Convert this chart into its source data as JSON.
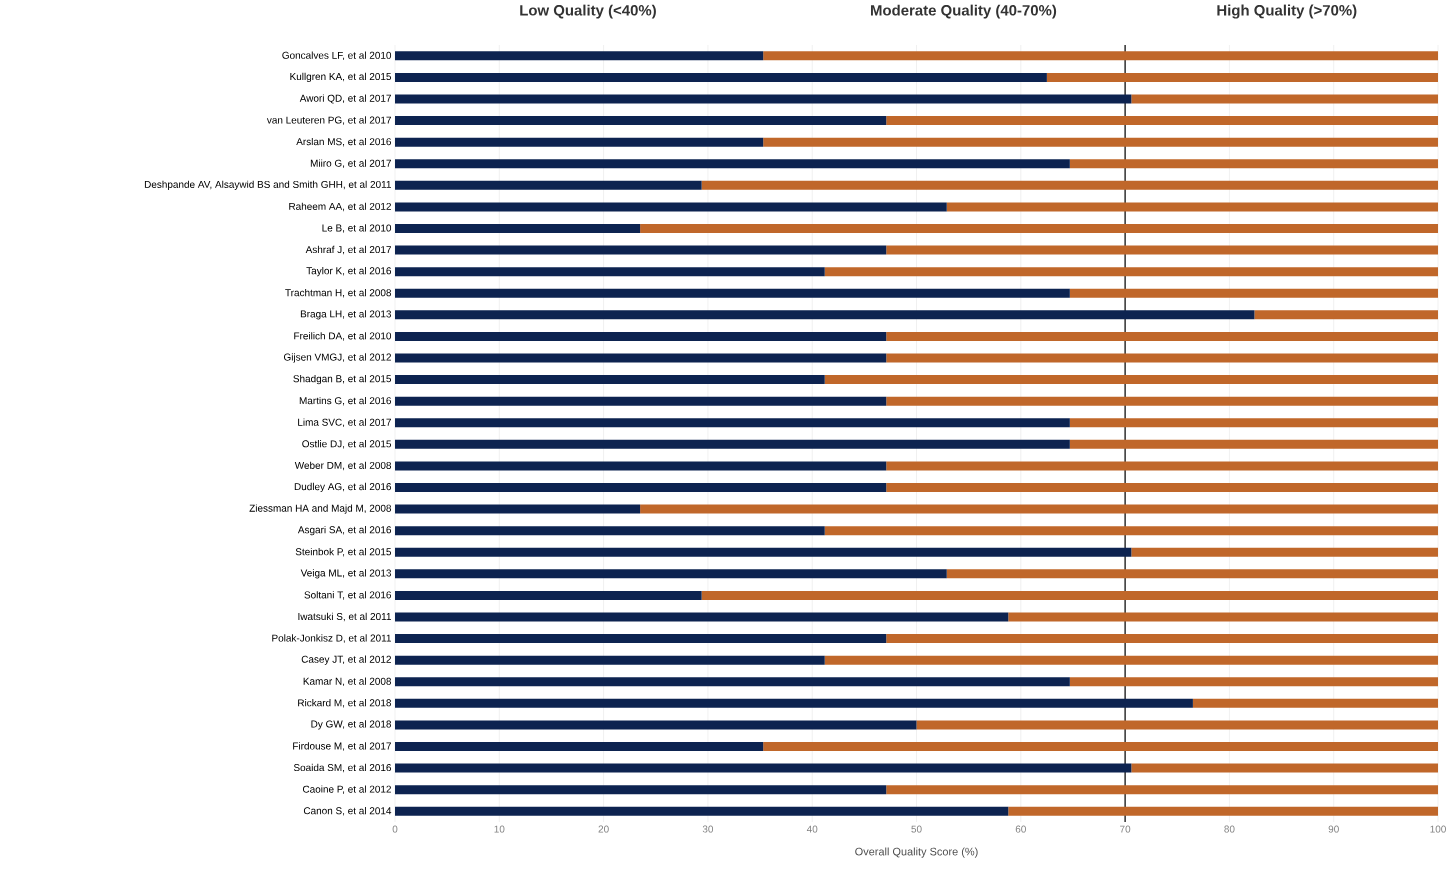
{
  "chart_data": {
    "type": "bar",
    "orientation": "horizontal",
    "stacked": true,
    "xlabel": "Overall Quality Score (%)",
    "annotations": [
      "Low Quality (<40%)",
      "Moderate Quality (40-70%)",
      "High Quality (>70%)"
    ],
    "categories": [
      "Goncalves LF, et al 2010",
      "Kullgren KA, et al 2015",
      "Awori QD, et al 2017",
      "van Leuteren PG, et al 2017",
      "Arslan MS, et al 2016",
      "Miiro G, et al 2017",
      "Deshpande AV, Alsaywid BS and Smith GHH, et al 2011",
      "Raheem AA, et al 2012",
      "Le B, et al 2010",
      "Ashraf J, et al 2017",
      "Taylor K, et al 2016",
      "Trachtman H, et al 2008",
      "Braga LH, et al 2013",
      "Freilich DA, et al 2010",
      "Gijsen VMGJ, et al 2012",
      "Shadgan B, et al 2015",
      "Martins G, et al 2016",
      "Lima SVC, et al 2017",
      "Ostlie DJ, et al 2015",
      "Weber DM, et al 2008",
      "Dudley AG, et al 2016",
      "Ziessman HA and Majd M, 2008",
      "Asgari SA, et al 2016",
      "Steinbok P, et al 2015",
      "Veiga ML, et al 2013",
      "Soltani T, et al 2016",
      "Iwatsuki S, et al 2011",
      "Polak-Jonkisz D, et al 2011",
      "Casey JT, et al 2012",
      "Kamar N, et al 2008",
      "Rickard M, et al 2018",
      "Dy GW, et al 2018",
      "Firdouse M, et al 2017",
      "Soaida SM, et al 2016",
      "Caoine P, et al 2012",
      "Canon S, et al 2014"
    ],
    "series": [
      {
        "color": "#0d2350",
        "values": [
          35.3,
          62.5,
          70.6,
          47.1,
          35.3,
          64.7,
          29.4,
          52.9,
          23.5,
          47.1,
          41.2,
          64.7,
          82.4,
          47.1,
          47.1,
          41.2,
          47.1,
          64.7,
          64.7,
          47.1,
          47.1,
          23.5,
          41.2,
          70.6,
          52.9,
          29.4,
          58.8,
          47.1,
          41.2,
          64.7,
          76.5,
          50.0,
          35.3,
          70.6,
          47.1,
          58.8
        ]
      },
      {
        "color": "#c0672a",
        "values": [
          64.7,
          37.5,
          29.4,
          52.9,
          64.7,
          35.3,
          70.6,
          47.1,
          76.5,
          52.9,
          58.8,
          35.3,
          17.6,
          52.9,
          52.9,
          58.8,
          52.9,
          35.3,
          35.3,
          52.9,
          52.9,
          76.5,
          58.8,
          29.4,
          47.1,
          70.6,
          41.2,
          52.9,
          58.8,
          35.3,
          23.5,
          50.0,
          64.7,
          29.4,
          52.9,
          41.2
        ]
      }
    ],
    "xlim": [
      0,
      100
    ],
    "xticks": [
      0,
      10,
      20,
      30,
      40,
      50,
      60,
      70,
      80,
      90,
      100
    ],
    "grid": "x",
    "ref_lines": [
      {
        "axis": "x",
        "value": 70,
        "color": "#000000"
      }
    ]
  }
}
